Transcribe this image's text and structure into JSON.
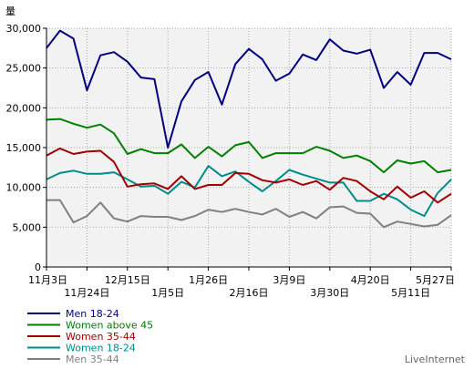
{
  "chart_data": {
    "type": "line",
    "ylabel": "量",
    "ylim": [
      0,
      30000
    ],
    "y_ticks": [
      "0",
      "5,000",
      "10,000",
      "15,000",
      "20,000",
      "25,000",
      "30,000"
    ],
    "y_tick_values": [
      0,
      5000,
      10000,
      15000,
      20000,
      25000,
      30000
    ],
    "grid": true,
    "legend_position": "bottom-left",
    "x_tick_labels": [
      {
        "label": "11月3日",
        "index": 0,
        "row": 1
      },
      {
        "label": "11月24日",
        "index": 3,
        "row": 2
      },
      {
        "label": "12月15日",
        "index": 6,
        "row": 1
      },
      {
        "label": "1月5日",
        "index": 9,
        "row": 2
      },
      {
        "label": "1月26日",
        "index": 12,
        "row": 1
      },
      {
        "label": "2月16日",
        "index": 15,
        "row": 2
      },
      {
        "label": "3月9日",
        "index": 18,
        "row": 1
      },
      {
        "label": "3月30日",
        "index": 21,
        "row": 2
      },
      {
        "label": "4月20日",
        "index": 24,
        "row": 1
      },
      {
        "label": "5月11日",
        "index": 27,
        "row": 2
      },
      {
        "label": "5月27日",
        "index": 30,
        "row": 1
      }
    ],
    "series": [
      {
        "name": "Men 18-24",
        "color": "#000080",
        "values": [
          27500,
          29700,
          28700,
          22200,
          26600,
          27000,
          25800,
          23800,
          23600,
          15000,
          20800,
          23500,
          24500,
          20400,
          25500,
          27400,
          26100,
          23400,
          24300,
          26700,
          26000,
          28600,
          27200,
          26800,
          27300,
          22500,
          24500,
          22900,
          26900,
          26900,
          26100
        ]
      },
      {
        "name": "Women above 45",
        "color": "#008000",
        "values": [
          18500,
          18600,
          18000,
          17500,
          17900,
          16800,
          14200,
          14800,
          14300,
          14300,
          15400,
          13700,
          15100,
          13900,
          15300,
          15700,
          13700,
          14300,
          14300,
          14300,
          15100,
          14600,
          13700,
          14000,
          13300,
          11900,
          13400,
          13000,
          13300,
          11900,
          12200
        ]
      },
      {
        "name": "Women 35-44",
        "color": "#a00000",
        "values": [
          14000,
          14900,
          14200,
          14500,
          14600,
          13200,
          10100,
          10400,
          10500,
          9800,
          11400,
          9800,
          10300,
          10300,
          11800,
          11700,
          10900,
          10600,
          11000,
          10300,
          10800,
          9700,
          11200,
          10800,
          9500,
          8500,
          10100,
          8700,
          9500,
          8100,
          9200
        ]
      },
      {
        "name": "Women 18-24",
        "color": "#008b8b",
        "values": [
          11000,
          11800,
          12100,
          11700,
          11700,
          11900,
          11000,
          10100,
          10200,
          9200,
          10700,
          10000,
          12700,
          11400,
          12000,
          10700,
          9500,
          10800,
          12200,
          11600,
          11100,
          10600,
          10600,
          8300,
          8300,
          9200,
          8500,
          7200,
          6400,
          9300,
          11000
        ]
      },
      {
        "name": "Men 35-44",
        "color": "#808080",
        "values": [
          8400,
          8400,
          5600,
          6400,
          8100,
          6100,
          5700,
          6400,
          6300,
          6300,
          5900,
          6400,
          7200,
          6900,
          7300,
          6900,
          6600,
          7300,
          6300,
          6900,
          6100,
          7500,
          7600,
          6800,
          6700,
          5000,
          5700,
          5400,
          5100,
          5300,
          6500
        ]
      }
    ]
  },
  "footer": {
    "credit": "LiveInternet"
  }
}
